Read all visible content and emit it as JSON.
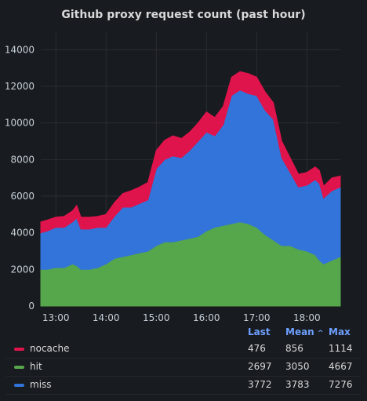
{
  "title": "Github proxy request count (past hour)",
  "legend": {
    "headers": {
      "last": "Last",
      "mean": "Mean",
      "mean_sort": "^",
      "max": "Max"
    },
    "rows": [
      {
        "name": "nocache",
        "color": "#e0144c",
        "last": "476",
        "mean": "856",
        "max": "1114"
      },
      {
        "name": "hit",
        "color": "#56a64b",
        "last": "2697",
        "mean": "3050",
        "max": "4667"
      },
      {
        "name": "miss",
        "color": "#3274d9",
        "last": "3772",
        "mean": "3783",
        "max": "7276"
      }
    ]
  },
  "chart_data": {
    "type": "area",
    "stacked": true,
    "title": "Github proxy request count (past hour)",
    "xlabel": "",
    "ylabel": "",
    "ylim": [
      0,
      15000
    ],
    "yticks": [
      0,
      2000,
      4000,
      6000,
      8000,
      10000,
      12000,
      14000
    ],
    "xlim": [
      "12:42",
      "18:40"
    ],
    "xticks": [
      "13:00",
      "14:00",
      "15:00",
      "16:00",
      "17:00",
      "18:00"
    ],
    "grid": true,
    "legend_position": "bottom",
    "x": [
      "12:42",
      "12:50",
      "13:00",
      "13:10",
      "13:20",
      "13:25",
      "13:30",
      "13:40",
      "13:50",
      "14:00",
      "14:10",
      "14:20",
      "14:30",
      "14:40",
      "14:50",
      "15:00",
      "15:10",
      "15:20",
      "15:30",
      "15:40",
      "15:50",
      "16:00",
      "16:10",
      "16:20",
      "16:30",
      "16:40",
      "16:50",
      "17:00",
      "17:10",
      "17:20",
      "17:30",
      "17:40",
      "17:50",
      "18:00",
      "18:10",
      "18:15",
      "18:20",
      "18:30",
      "18:40"
    ],
    "series": [
      {
        "name": "hit",
        "color": "#56a64b",
        "values": [
          2000,
          2000,
          2100,
          2100,
          2300,
          2200,
          2000,
          2000,
          2100,
          2300,
          2600,
          2700,
          2800,
          2900,
          3000,
          3300,
          3500,
          3500,
          3600,
          3700,
          3800,
          4100,
          4300,
          4400,
          4500,
          4600,
          4500,
          4300,
          3900,
          3600,
          3300,
          3300,
          3100,
          3000,
          2800,
          2500,
          2300,
          2500,
          2700
        ]
      },
      {
        "name": "miss",
        "color": "#3274d9",
        "values": [
          2000,
          2100,
          2200,
          2200,
          2300,
          2600,
          2200,
          2200,
          2200,
          2000,
          2300,
          2700,
          2600,
          2700,
          2800,
          4200,
          4500,
          4700,
          4500,
          4800,
          5200,
          5400,
          5000,
          5500,
          7000,
          7200,
          7100,
          7200,
          6800,
          6600,
          4800,
          4000,
          3400,
          3600,
          4100,
          4200,
          3600,
          3800,
          3800
        ]
      },
      {
        "name": "nocache",
        "color": "#e0144c",
        "values": [
          600,
          600,
          550,
          600,
          600,
          700,
          650,
          650,
          600,
          700,
          750,
          750,
          900,
          900,
          950,
          1000,
          1050,
          1100,
          1050,
          1000,
          1000,
          1100,
          1000,
          1000,
          1000,
          1000,
          1100,
          1000,
          1000,
          900,
          900,
          800,
          700,
          700,
          700,
          700,
          650,
          700,
          600
        ]
      }
    ]
  }
}
